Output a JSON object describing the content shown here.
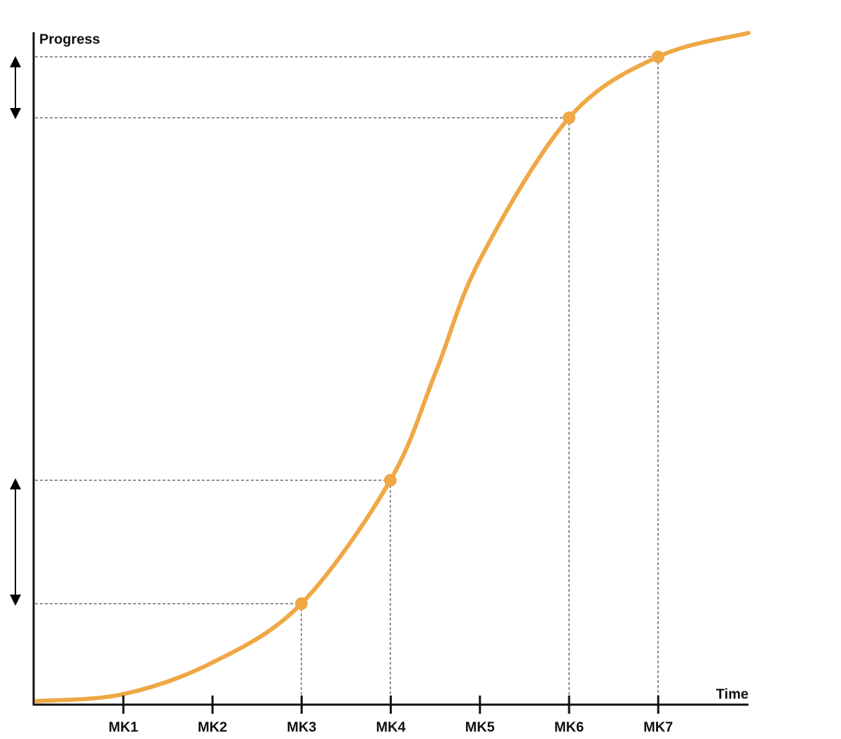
{
  "axes": {
    "y_label": "Progress",
    "x_label": "Time"
  },
  "milestones": [
    "MK1",
    "MK2",
    "MK3",
    "MK4",
    "MK5",
    "MK6",
    "MK7"
  ]
}
